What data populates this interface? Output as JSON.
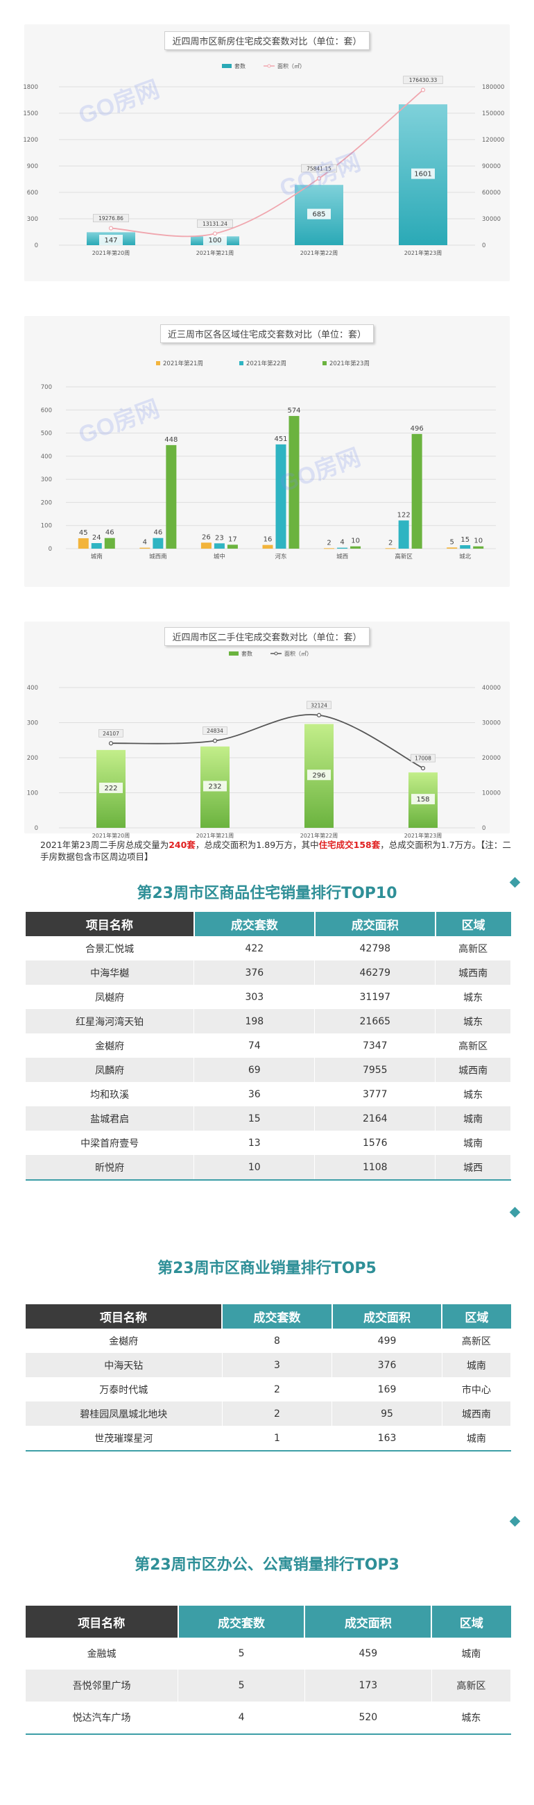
{
  "watermark": "GO房网",
  "chart1": {
    "title": "近四周市区新房住宅成交套数对比（单位：套）",
    "legend_bar": "套数",
    "legend_line": "面积（㎡）",
    "categories": [
      "2021年第20周",
      "2021年第21周",
      "2021年第22周",
      "2021年第23周"
    ],
    "left_ticks": [
      "0",
      "300",
      "600",
      "900",
      "1200",
      "1500",
      "1800"
    ],
    "right_ticks": [
      "0",
      "30000",
      "60000",
      "90000",
      "120000",
      "150000",
      "180000"
    ],
    "bar_labels": [
      "147",
      "100",
      "685",
      "1601"
    ],
    "line_labels": [
      "19276.86",
      "13131.24",
      "75841.15",
      "176430.33"
    ]
  },
  "chart2": {
    "title": "近三周市区各区域住宅成交套数对比（单位：套）",
    "series_names": [
      "2021年第21周",
      "2021年第22周",
      "2021年第23周"
    ],
    "categories": [
      "城南",
      "城西南",
      "城中",
      "河东",
      "城西",
      "高新区",
      "城北"
    ],
    "ticks": [
      "0",
      "100",
      "200",
      "300",
      "400",
      "500",
      "600",
      "700"
    ],
    "value_labels": [
      [
        "45",
        "4",
        "26",
        "16",
        "2",
        "2",
        "5"
      ],
      [
        "24",
        "46",
        "23",
        "451",
        "4",
        "122",
        "15"
      ],
      [
        "46",
        "448",
        "17",
        "574",
        "10",
        "496",
        "10"
      ]
    ]
  },
  "chart3": {
    "title": "近四周市区二手住宅成交套数对比（单位：套）",
    "legend_bar": "套数",
    "legend_line": "面积（㎡）",
    "categories": [
      "2021年第20周",
      "2021年第21周",
      "2021年第22周",
      "2021年第23周"
    ],
    "left_ticks": [
      "0",
      "100",
      "200",
      "300",
      "400"
    ],
    "right_ticks": [
      "0",
      "10000",
      "20000",
      "30000",
      "40000"
    ],
    "bar_labels": [
      "222",
      "232",
      "296",
      "158"
    ],
    "line_labels": [
      "24107",
      "24834",
      "32124",
      "17008"
    ]
  },
  "paragraph": {
    "p1": "2021年第23周二手房总成交量为",
    "b1": "240套",
    "p2": "，总成交面积为1.89万方，其中",
    "b2": "住宅成交158套",
    "p3": "，总成交面积为1.7万方。【注：二手房数据包含市区周边项目】"
  },
  "table_headers": [
    "项目名称",
    "成交套数",
    "成交面积",
    "区域"
  ],
  "tables": [
    {
      "title": "第23周市区商品住宅销量排行TOP10",
      "rows": [
        [
          "合景汇悦城",
          "422",
          "42798",
          "高新区"
        ],
        [
          "中海华樾",
          "376",
          "46279",
          "城西南"
        ],
        [
          "凤樾府",
          "303",
          "31197",
          "城东"
        ],
        [
          "红星海河湾天铂",
          "198",
          "21665",
          "城东"
        ],
        [
          "金樾府",
          "74",
          "7347",
          "高新区"
        ],
        [
          "凤麟府",
          "69",
          "7955",
          "城西南"
        ],
        [
          "均和玖溪",
          "36",
          "3777",
          "城东"
        ],
        [
          "盐城君启",
          "15",
          "2164",
          "城南"
        ],
        [
          "中梁首府壹号",
          "13",
          "1576",
          "城南"
        ],
        [
          "昕悦府",
          "10",
          "1108",
          "城西"
        ]
      ]
    },
    {
      "title": "第23周市区商业销量排行TOP5",
      "rows": [
        [
          "金樾府",
          "8",
          "499",
          "高新区"
        ],
        [
          "中海天钻",
          "3",
          "376",
          "城南"
        ],
        [
          "万泰时代城",
          "2",
          "169",
          "市中心"
        ],
        [
          "碧桂园凤凰城北地块",
          "2",
          "95",
          "城西南"
        ],
        [
          "世茂璀璨星河",
          "1",
          "163",
          "城南"
        ]
      ]
    },
    {
      "title": "第23周市区办公、公寓销量排行TOP3",
      "rows": [
        [
          "金融城",
          "5",
          "459",
          "城南"
        ],
        [
          "吾悦邻里广场",
          "5",
          "173",
          "高新区"
        ],
        [
          "悦达汽车广场",
          "4",
          "520",
          "城东"
        ]
      ]
    }
  ],
  "colors": {
    "teal": "#3c9ea6",
    "dark": "#3b3b3b",
    "bar1": "#2aa9b6",
    "line1": "#f0a6ae",
    "orange": "#f2b43c",
    "cyan": "#2fb4c2",
    "green": "#6bb33f"
  },
  "chart_data": [
    {
      "type": "bar",
      "title": "近四周市区新房住宅成交套数对比（单位：套）",
      "categories": [
        "2021年第20周",
        "2021年第21周",
        "2021年第22周",
        "2021年第23周"
      ],
      "series": [
        {
          "name": "套数",
          "values": [
            147,
            100,
            685,
            1601
          ],
          "axis": "left"
        },
        {
          "name": "面积（㎡）",
          "values": [
            19276.86,
            13131.24,
            75841.15,
            176430.33
          ],
          "axis": "right",
          "type": "line"
        }
      ],
      "ylim": [
        0,
        1800
      ],
      "y2lim": [
        0,
        180000
      ],
      "legend": "top"
    },
    {
      "type": "bar",
      "title": "近三周市区各区域住宅成交套数对比（单位：套）",
      "categories": [
        "城南",
        "城西南",
        "城中",
        "河东",
        "城西",
        "高新区",
        "城北"
      ],
      "series": [
        {
          "name": "2021年第21周",
          "values": [
            45,
            4,
            26,
            16,
            2,
            2,
            5
          ]
        },
        {
          "name": "2021年第22周",
          "values": [
            24,
            46,
            23,
            451,
            4,
            122,
            15
          ]
        },
        {
          "name": "2021年第23周",
          "values": [
            46,
            448,
            17,
            574,
            10,
            496,
            10
          ]
        }
      ],
      "ylim": [
        0,
        700
      ],
      "legend": "top"
    },
    {
      "type": "bar",
      "title": "近四周市区二手住宅成交套数对比（单位：套）",
      "categories": [
        "2021年第20周",
        "2021年第21周",
        "2021年第22周",
        "2021年第23周"
      ],
      "series": [
        {
          "name": "套数",
          "values": [
            222,
            232,
            296,
            158
          ],
          "axis": "left"
        },
        {
          "name": "面积（㎡）",
          "values": [
            24107,
            24834,
            32124,
            17008
          ],
          "axis": "right",
          "type": "line"
        }
      ],
      "ylim": [
        0,
        400
      ],
      "y2lim": [
        0,
        40000
      ],
      "legend": "top"
    }
  ]
}
